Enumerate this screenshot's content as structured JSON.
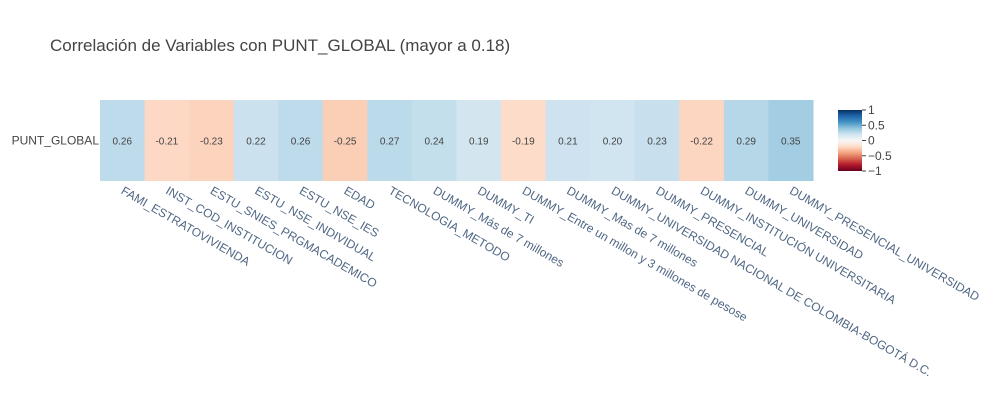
{
  "chart_data": {
    "type": "heatmap",
    "title": "Correlación de Variables con PUNT_GLOBAL (mayor a 0.18)",
    "y_categories": [
      "PUNT_GLOBAL"
    ],
    "x_categories": [
      "FAMI_ESTRATOVIVIENDA",
      "INST_COD_INSTITUCION",
      "ESTU_SNIES_PRGMACADEMICO",
      "ESTU_NSE_INDIVIDUAL",
      "ESTU_NSE_IES",
      "EDAD",
      "TECNOLOGIA_METODO",
      "DUMMY_Más de 7 millones",
      "DUMMY_TI",
      "DUMMY_Entre un millon y 3 millones de pesose",
      "DUMMY_Mas de 7 millones",
      "DUMMY_UNIVERSIDAD NACIONAL DE COLOMBIA-BOGOTÁ D.C.",
      "DUMMY_PRESENCIAL",
      "DUMMY_INSTITUCIÓN UNIVERSITARIA",
      "DUMMY_UNIVERSIDAD",
      "DUMMY_PRESENCIAL_UNIVERSIDAD"
    ],
    "values": [
      0.26,
      -0.21,
      -0.23,
      0.22,
      0.26,
      -0.25,
      0.27,
      0.24,
      0.19,
      -0.19,
      0.21,
      0.2,
      0.23,
      -0.22,
      0.29,
      0.35
    ],
    "value_labels": [
      "0.26",
      "-0.21",
      "-0.23",
      "0.22",
      "0.26",
      "-0.25",
      "0.27",
      "0.24",
      "0.19",
      "-0.19",
      "0.21",
      "0.20",
      "0.23",
      "-0.22",
      "0.29",
      "0.35"
    ],
    "zrange": [
      -1,
      1
    ],
    "colorscale": "RdBu",
    "colorbar_ticks": [
      1,
      0.5,
      0,
      -0.5,
      -1
    ],
    "colorbar_tick_labels": [
      "1",
      "0.5",
      "0",
      "−0.5",
      "−1"
    ],
    "grid": false,
    "legend": "right"
  }
}
